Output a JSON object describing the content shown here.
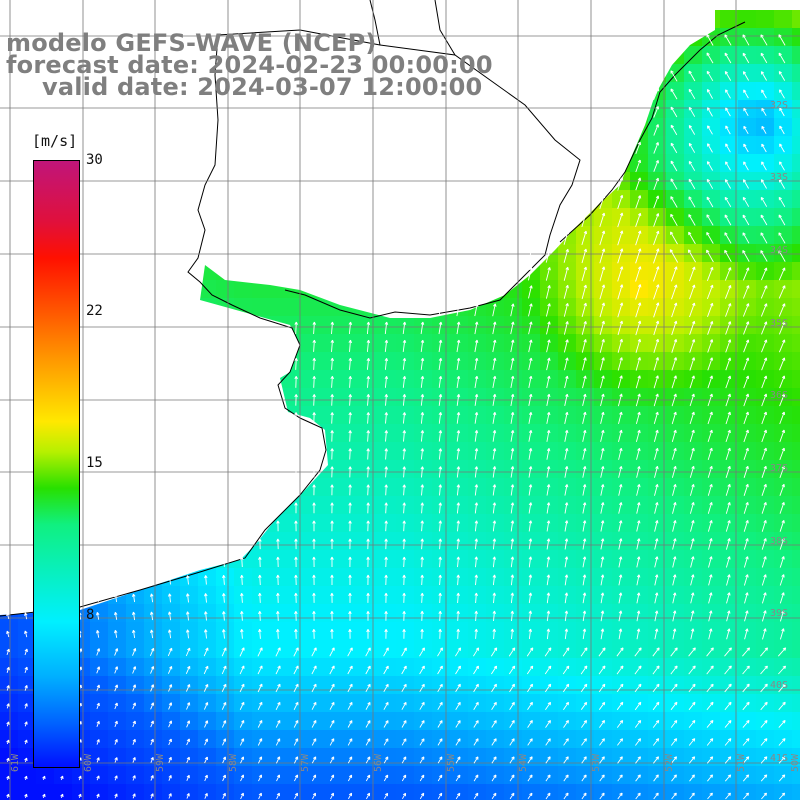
{
  "title": {
    "line1": "modelo GEFS-WAVE (NCEP)",
    "line2": "forecast date: 2024-02-23 00:00:00",
    "line3": "valid date: 2024-03-07 12:00:00"
  },
  "colorbar": {
    "unit": "[m/s]",
    "min": 0,
    "max": 30,
    "ticks": [
      "30",
      "22",
      "15",
      "8"
    ],
    "tick_values": [
      30,
      22,
      15,
      8
    ],
    "colors": [
      "#c0157a",
      "#ff1000",
      "#ff9a00",
      "#ffe800",
      "#28e000",
      "#00f0ff",
      "#0060ff",
      "#0010ff"
    ]
  },
  "map": {
    "lon_range": [
      -61,
      -49
    ],
    "lat_range": [
      -43,
      -32
    ],
    "lat_labels": [
      "32S",
      "33S",
      "34S",
      "35S",
      "36S",
      "37S",
      "38S",
      "39S",
      "40S",
      "41S"
    ],
    "lon_labels": [
      "61W",
      "60W",
      "59W",
      "58W",
      "57W",
      "56W",
      "55W",
      "54W",
      "53W",
      "52W",
      "51W",
      "50W"
    ],
    "land_color": "#ffffff",
    "coast_color": "#000000",
    "grid_color": "#777777"
  }
}
